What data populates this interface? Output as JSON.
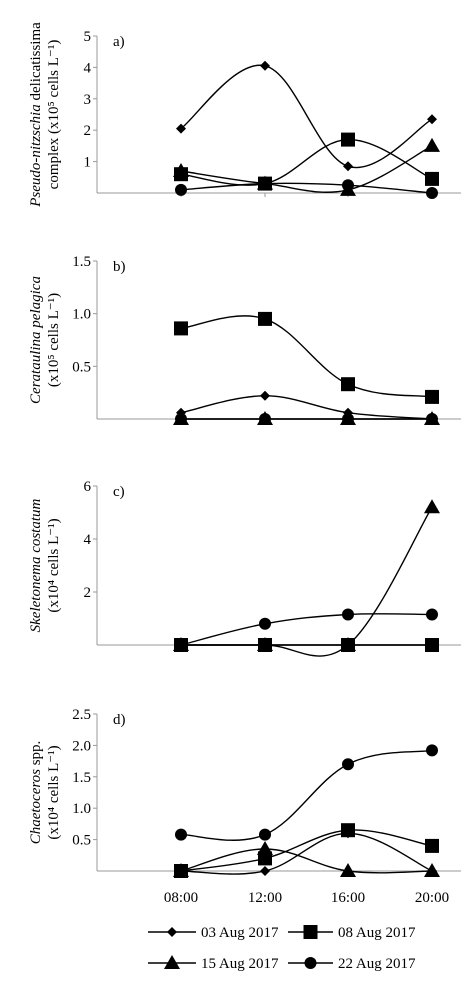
{
  "x_ticks": [
    "08:00",
    "12:00",
    "16:00",
    "20:00"
  ],
  "series_names": [
    "03 Aug 2017",
    "08 Aug 2017",
    "15 Aug 2017",
    "22 Aug 2017"
  ],
  "series_markers": [
    "diamond",
    "square",
    "triangle",
    "circle"
  ],
  "colors": {
    "line": "#000000",
    "axis": "#999999"
  },
  "chart_data": [
    {
      "type": "line",
      "panel_label": "a)",
      "ylabel_lines": [
        {
          "italic": "Pseudo-nitzschia",
          "normal": " delicatissima"
        },
        {
          "italic": "",
          "normal": "complex (x10⁵ cells L⁻¹)"
        }
      ],
      "x": [
        "08:00",
        "12:00",
        "16:00",
        "20:00"
      ],
      "ylim": [
        0,
        5
      ],
      "yticks": [
        1,
        2,
        3,
        4,
        5
      ],
      "ytick_labels": [
        "1",
        "2",
        "3",
        "4",
        "5"
      ],
      "series": [
        {
          "name": "03 Aug 2017",
          "values": [
            2.05,
            4.05,
            0.85,
            2.35
          ]
        },
        {
          "name": "08 Aug 2017",
          "values": [
            0.6,
            0.3,
            1.7,
            0.45
          ]
        },
        {
          "name": "15 Aug 2017",
          "values": [
            0.7,
            0.3,
            0.1,
            1.5
          ]
        },
        {
          "name": "22 Aug 2017",
          "values": [
            0.1,
            0.3,
            0.25,
            0.0
          ]
        }
      ]
    },
    {
      "type": "line",
      "panel_label": "b)",
      "ylabel_lines": [
        {
          "italic": "Cerataulina pelagica",
          "normal": ""
        },
        {
          "italic": "",
          "normal": "(x10⁵ cells L⁻¹)"
        }
      ],
      "x": [
        "08:00",
        "12:00",
        "16:00",
        "20:00"
      ],
      "ylim": [
        0,
        1.5
      ],
      "yticks": [
        0.5,
        1.0,
        1.5
      ],
      "ytick_labels": [
        "0.5",
        "1.0",
        "1.5"
      ],
      "series": [
        {
          "name": "03 Aug 2017",
          "values": [
            0.06,
            0.22,
            0.06,
            0.0
          ]
        },
        {
          "name": "08 Aug 2017",
          "values": [
            0.86,
            0.95,
            0.33,
            0.21
          ]
        },
        {
          "name": "15 Aug 2017",
          "values": [
            0.0,
            0.0,
            0.0,
            0.0
          ]
        },
        {
          "name": "22 Aug 2017",
          "values": [
            0.0,
            0.0,
            0.0,
            0.0
          ]
        }
      ]
    },
    {
      "type": "line",
      "panel_label": "c)",
      "ylabel_lines": [
        {
          "italic": "Skeletonema costatum",
          "normal": ""
        },
        {
          "italic": "",
          "normal": "(x10⁴  cells L⁻¹)"
        }
      ],
      "x": [
        "08:00",
        "12:00",
        "16:00",
        "20:00"
      ],
      "ylim": [
        0,
        6
      ],
      "yticks": [
        2,
        4,
        6
      ],
      "ytick_labels": [
        "2",
        "4",
        "6"
      ],
      "series": [
        {
          "name": "03 Aug 2017",
          "values": [
            0.0,
            0.0,
            0.0,
            0.0
          ]
        },
        {
          "name": "08 Aug 2017",
          "values": [
            0.0,
            0.0,
            0.0,
            0.0
          ]
        },
        {
          "name": "15 Aug 2017",
          "values": [
            0.0,
            0.0,
            0.0,
            5.2
          ]
        },
        {
          "name": "22 Aug 2017",
          "values": [
            0.0,
            0.8,
            1.15,
            1.15
          ]
        }
      ]
    },
    {
      "type": "line",
      "panel_label": "d)",
      "ylabel_lines": [
        {
          "italic": "Chaetoceros",
          "normal": " spp."
        },
        {
          "italic": "",
          "normal": "(x10⁴ cells L⁻¹)"
        }
      ],
      "x": [
        "08:00",
        "12:00",
        "16:00",
        "20:00"
      ],
      "ylim": [
        0,
        2.5
      ],
      "yticks": [
        0.5,
        1.0,
        1.5,
        2.0,
        2.5
      ],
      "ytick_labels": [
        "0.5",
        "1.0",
        "1.5",
        "2.0",
        "2.5"
      ],
      "series": [
        {
          "name": "03 Aug 2017",
          "values": [
            0.0,
            0.0,
            0.6,
            0.0
          ]
        },
        {
          "name": "08 Aug 2017",
          "values": [
            0.0,
            0.2,
            0.65,
            0.4
          ]
        },
        {
          "name": "15 Aug 2017",
          "values": [
            0.0,
            0.35,
            0.0,
            0.0
          ]
        },
        {
          "name": "22 Aug 2017",
          "values": [
            0.58,
            0.58,
            1.7,
            1.92
          ]
        }
      ]
    }
  ]
}
